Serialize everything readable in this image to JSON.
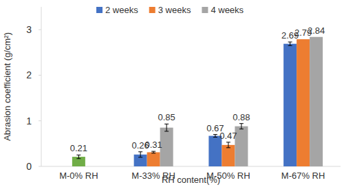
{
  "chart_data": {
    "type": "bar",
    "y_label": "Abrasion coefficient (g/cm²)",
    "x_label": "RH content(%)",
    "categories": [
      "M-0% RH",
      "M-33% RH",
      "M-50% RH",
      "M-67% RH"
    ],
    "series": [
      {
        "color": "#70ad47",
        "values": [
          0.21,
          null,
          null,
          null
        ],
        "errors": [
          0.04,
          null,
          null,
          null
        ]
      },
      {
        "name": "2 weeks",
        "color": "#4472c4",
        "values": [
          null,
          0.26,
          0.67,
          2.69
        ],
        "errors": [
          null,
          0.06,
          0.03,
          0.04
        ]
      },
      {
        "name": "3 weeks",
        "color": "#ed7d31",
        "values": [
          null,
          0.31,
          0.47,
          2.79
        ],
        "errors": [
          null,
          0.02,
          0.06,
          null
        ]
      },
      {
        "name": "4 weeks",
        "color": "#a5a5a5",
        "values": [
          null,
          0.85,
          0.88,
          2.84
        ],
        "errors": [
          null,
          0.08,
          0.06,
          null
        ]
      }
    ],
    "ylim": [
      0,
      3.5
    ],
    "yticks": [
      0,
      1,
      2,
      3
    ],
    "grid": false,
    "legend": "top",
    "data_labels": true
  }
}
